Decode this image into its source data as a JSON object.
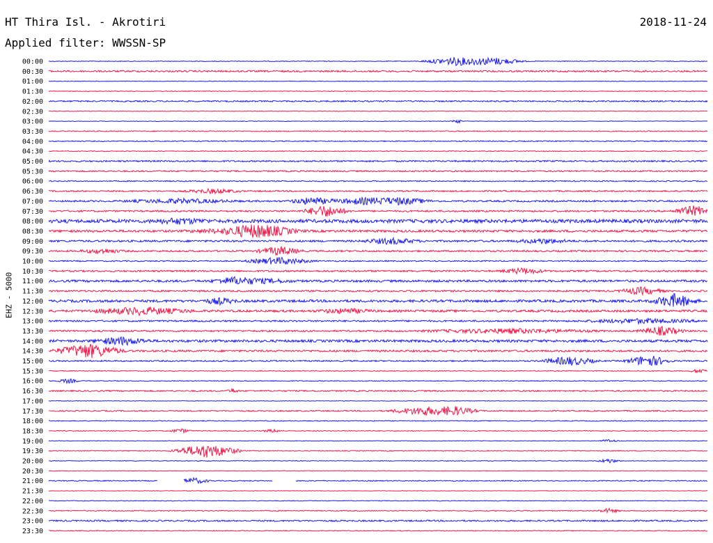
{
  "header": {
    "station": "HT Thira Isl. - Akrotiri",
    "date": "2018-11-24",
    "filter": "Applied filter: WWSSN-SP"
  },
  "channel_label": "EHZ - 5000",
  "colors": {
    "trace_a": "#1a1aee",
    "trace_b": "#ee1a4a",
    "background": "#ffffff",
    "text": "#000000"
  },
  "chart_data": {
    "type": "line",
    "title": "HT Thira Isl. - Akrotiri",
    "ylabel": "EHZ - 5000",
    "xlabel": "",
    "grid": false,
    "legend": "none",
    "row_labels": [
      "00:00",
      "00:30",
      "01:00",
      "01:30",
      "02:00",
      "02:30",
      "03:00",
      "03:30",
      "04:00",
      "04:30",
      "05:00",
      "05:30",
      "06:00",
      "06:30",
      "07:00",
      "07:30",
      "08:00",
      "08:30",
      "09:00",
      "09:30",
      "10:00",
      "10:30",
      "11:00",
      "11:30",
      "12:00",
      "12:30",
      "13:00",
      "13:30",
      "14:00",
      "14:30",
      "15:00",
      "15:30",
      "16:00",
      "16:30",
      "17:00",
      "17:30",
      "18:00",
      "18:30",
      "19:00",
      "19:30",
      "20:00",
      "20:30",
      "21:00",
      "21:30",
      "22:00",
      "22:30",
      "23:00",
      "23:30"
    ],
    "noise": [
      0.5,
      1.2,
      0.4,
      0.5,
      1.0,
      0.4,
      0.4,
      0.7,
      0.7,
      0.6,
      1.1,
      1.0,
      0.8,
      1.0,
      1.2,
      1.2,
      2.5,
      1.6,
      1.4,
      1.2,
      0.9,
      1.2,
      1.6,
      1.2,
      1.8,
      1.6,
      1.2,
      1.2,
      1.8,
      1.4,
      1.0,
      0.6,
      0.6,
      1.0,
      0.4,
      0.9,
      0.6,
      0.6,
      0.4,
      0.6,
      0.5,
      0.4,
      0.7,
      0.4,
      0.5,
      0.7,
      1.1,
      0.6
    ],
    "bursts": [
      [
        [
          0.62,
          6,
          0.06
        ],
        [
          0.68,
          5,
          0.05
        ]
      ],
      [],
      [],
      [],
      [],
      [],
      [
        [
          0.62,
          3,
          0.01
        ]
      ],
      [],
      [],
      [],
      [],
      [],
      [],
      [
        [
          0.25,
          3,
          0.05
        ]
      ],
      [
        [
          0.2,
          3,
          0.1
        ],
        [
          0.4,
          5,
          0.04
        ],
        [
          0.47,
          4,
          0.05
        ],
        [
          0.53,
          5,
          0.06
        ]
      ],
      [
        [
          0.42,
          8,
          0.04
        ],
        [
          0.98,
          7,
          0.04
        ]
      ],
      [
        [
          0.2,
          3,
          0.05
        ]
      ],
      [
        [
          0.32,
          6,
          0.06
        ],
        [
          0.3,
          4,
          0.1
        ]
      ],
      [
        [
          0.52,
          4,
          0.05
        ],
        [
          0.75,
          3,
          0.05
        ]
      ],
      [
        [
          0.08,
          3,
          0.04
        ],
        [
          0.35,
          6,
          0.04
        ]
      ],
      [
        [
          0.35,
          5,
          0.06
        ]
      ],
      [
        [
          0.72,
          4,
          0.04
        ]
      ],
      [
        [
          0.28,
          4,
          0.04
        ],
        [
          0.32,
          3,
          0.06
        ]
      ],
      [
        [
          0.9,
          5,
          0.04
        ]
      ],
      [
        [
          0.26,
          4,
          0.03
        ],
        [
          0.95,
          9,
          0.04
        ]
      ],
      [
        [
          0.14,
          5,
          0.09
        ],
        [
          0.45,
          3,
          0.05
        ]
      ],
      [
        [
          0.9,
          3,
          0.1
        ]
      ],
      [
        [
          0.7,
          3,
          0.15
        ],
        [
          0.93,
          6,
          0.04
        ]
      ],
      [
        [
          0.11,
          5,
          0.05
        ]
      ],
      [
        [
          0.06,
          10,
          0.06
        ]
      ],
      [
        [
          0.79,
          6,
          0.05
        ],
        [
          0.91,
          8,
          0.04
        ]
      ],
      [
        [
          0.99,
          3,
          0.02
        ]
      ],
      [
        [
          0.03,
          3,
          0.02
        ]
      ],
      [
        [
          0.28,
          3,
          0.01
        ]
      ],
      [],
      [
        [
          0.57,
          6,
          0.06
        ],
        [
          0.62,
          5,
          0.04
        ]
      ],
      [],
      [
        [
          0.2,
          3,
          0.02
        ],
        [
          0.34,
          2,
          0.02
        ]
      ],
      [
        [
          0.85,
          2,
          0.02
        ]
      ],
      [
        [
          0.24,
          10,
          0.06
        ]
      ],
      [
        [
          0.85,
          3,
          0.02
        ]
      ],
      [],
      [
        [
          0.22,
          4,
          0.03
        ]
      ],
      [],
      [],
      [
        [
          0.85,
          3,
          0.02
        ]
      ],
      [],
      []
    ],
    "gaps": [
      [],
      [],
      [],
      [],
      [],
      [],
      [],
      [],
      [],
      [],
      [],
      [],
      [],
      [],
      [],
      [],
      [],
      [],
      [],
      [],
      [],
      [],
      [],
      [],
      [],
      [],
      [],
      [],
      [],
      [],
      [],
      [],
      [],
      [],
      [],
      [],
      [],
      [],
      [],
      [],
      [],
      [],
      [
        [
          0.165,
          0.205
        ],
        [
          0.34,
          0.375
        ]
      ],
      [],
      [],
      [],
      [],
      []
    ]
  }
}
